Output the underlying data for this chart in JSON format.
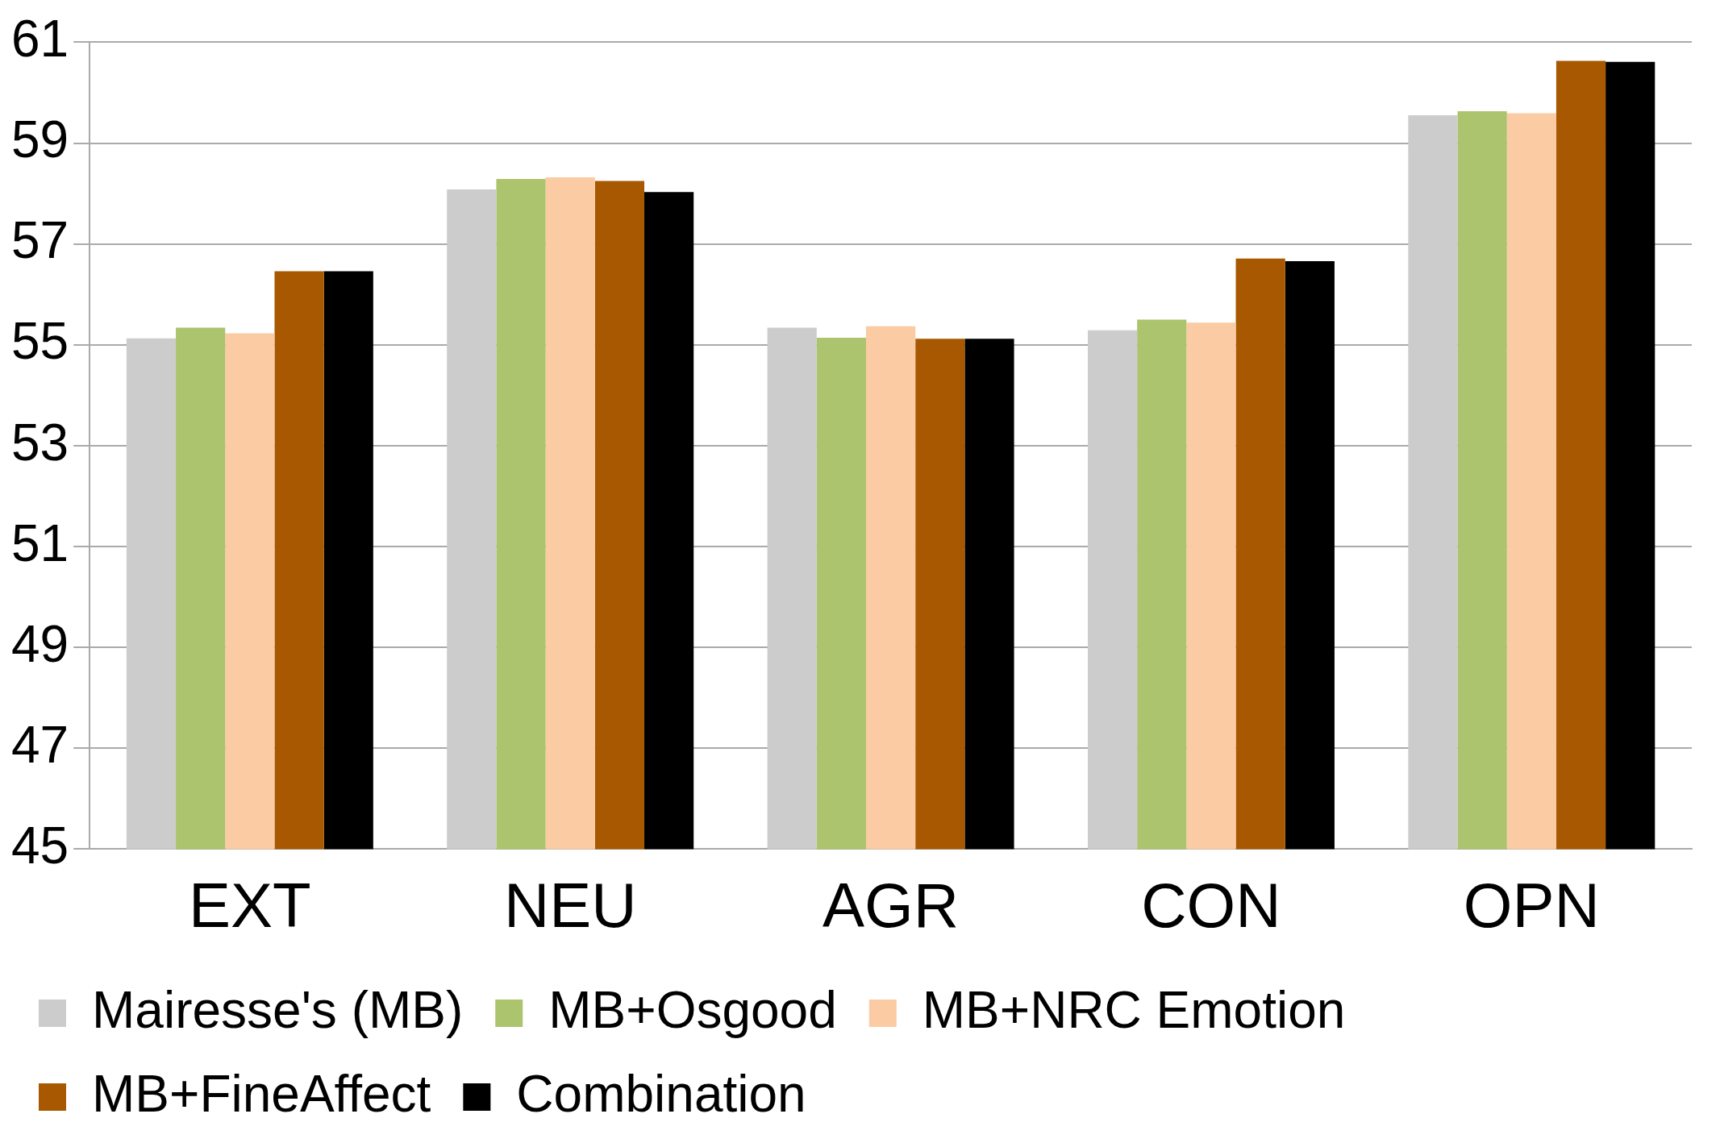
{
  "chart_data": {
    "type": "bar",
    "categories": [
      "EXT",
      "NEU",
      "AGR",
      "CON",
      "OPN"
    ],
    "series": [
      {
        "name": "Mairesse's (MB)",
        "color": "#cccccc",
        "values": [
          55.13,
          58.08,
          55.34,
          55.29,
          59.55
        ]
      },
      {
        "name": "MB+Osgood",
        "color": "#abc46d",
        "values": [
          55.34,
          58.29,
          55.14,
          55.5,
          59.63
        ]
      },
      {
        "name": "MB+NRC Emotion",
        "color": "#fbcba3",
        "values": [
          55.23,
          58.32,
          55.37,
          55.44,
          59.59
        ]
      },
      {
        "name": "MB+FineAffect",
        "color": "#a85800",
        "values": [
          56.46,
          58.25,
          55.12,
          56.71,
          60.63
        ]
      },
      {
        "name": "Combination",
        "color": "#000000",
        "values": [
          56.46,
          58.03,
          55.12,
          56.66,
          60.61
        ]
      }
    ],
    "ylim": [
      45,
      61
    ],
    "yticks": [
      45,
      47,
      49,
      51,
      53,
      55,
      57,
      59,
      61
    ],
    "grid": "y",
    "legend": "bottom"
  }
}
